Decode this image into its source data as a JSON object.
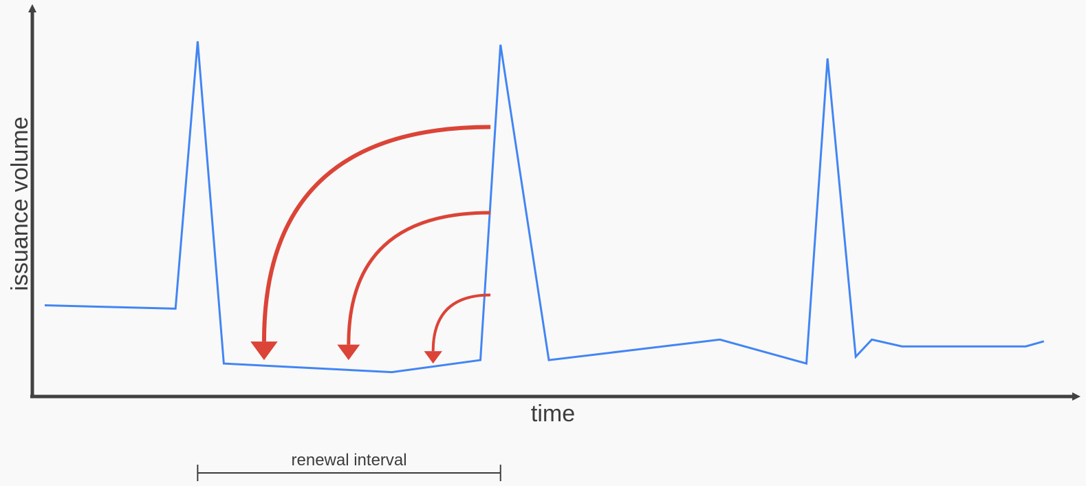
{
  "chart_data": {
    "type": "line",
    "title": "",
    "xlabel": "time",
    "ylabel": "issuance volume",
    "grid": false,
    "legend": "none",
    "ylim": [
      0,
      100
    ],
    "series": [
      {
        "x": [
          0,
          13,
          15.2,
          17.8,
          34.5,
          43.3,
          45.3,
          50.1,
          67.1,
          75.7,
          77.8,
          80.6,
          82.2,
          85.2,
          97.5,
          99.3
        ],
        "y": [
          23,
          22,
          100,
          6,
          3.5,
          7,
          99,
          7,
          13,
          6,
          95,
          8,
          13,
          11,
          11,
          12.5
        ]
      }
    ],
    "annotations": {
      "interval_label": "renewal interval",
      "interval_start": 15.2,
      "interval_end": 45.3,
      "arrows": [
        {
          "from": [
            44.3,
            75
          ],
          "to": [
            21.8,
            7
          ]
        },
        {
          "from": [
            44.3,
            50
          ],
          "to": [
            30.2,
            7
          ]
        },
        {
          "from": [
            44.3,
            26
          ],
          "to": [
            38.6,
            6
          ]
        }
      ]
    },
    "colors": {
      "line": "#4285f4",
      "arrows": "#db4437",
      "axis": "#424242",
      "text": "#3c3c3c",
      "background": "#f9f9f9"
    }
  }
}
